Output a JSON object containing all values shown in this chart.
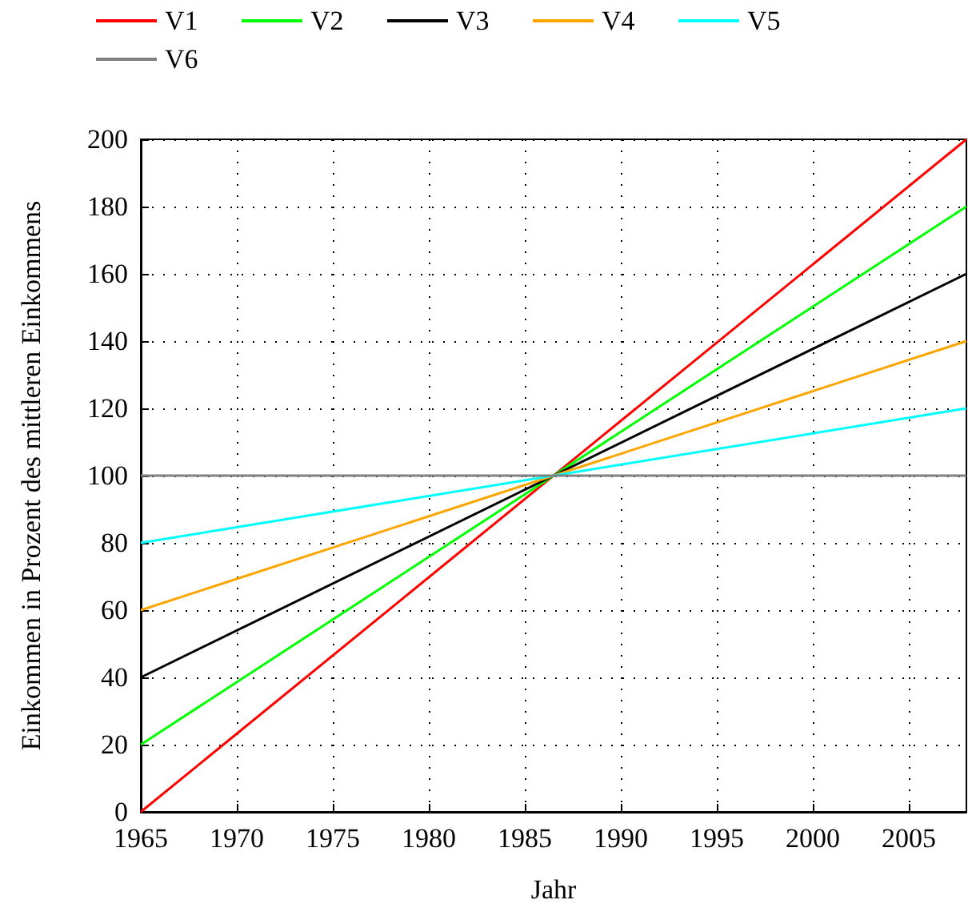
{
  "chart_data": {
    "type": "line",
    "xlabel": "Jahr",
    "ylabel": "Einkommen in Prozent des mittleren Einkommens",
    "x": [
      1965,
      2008
    ],
    "xlim": [
      1965,
      2008
    ],
    "xticks": [
      1965,
      1970,
      1975,
      1980,
      1985,
      1990,
      1995,
      2000,
      2005
    ],
    "ylim": [
      0,
      200
    ],
    "yticks": [
      0,
      20,
      40,
      60,
      80,
      100,
      120,
      140,
      160,
      180,
      200
    ],
    "grid": true,
    "legend": "top",
    "marker": "none",
    "line_style": "solid",
    "series": [
      {
        "name": "V1",
        "color": "#ff0000",
        "values": [
          0,
          200
        ]
      },
      {
        "name": "V2",
        "color": "#00ff00",
        "values": [
          20,
          180
        ]
      },
      {
        "name": "V3",
        "color": "#000000",
        "values": [
          40,
          160
        ]
      },
      {
        "name": "V4",
        "color": "#ffa500",
        "values": [
          60,
          140
        ]
      },
      {
        "name": "V5",
        "color": "#00ffff",
        "values": [
          80,
          120
        ]
      },
      {
        "name": "V6",
        "color": "#808080",
        "values": [
          100,
          100
        ]
      }
    ]
  }
}
